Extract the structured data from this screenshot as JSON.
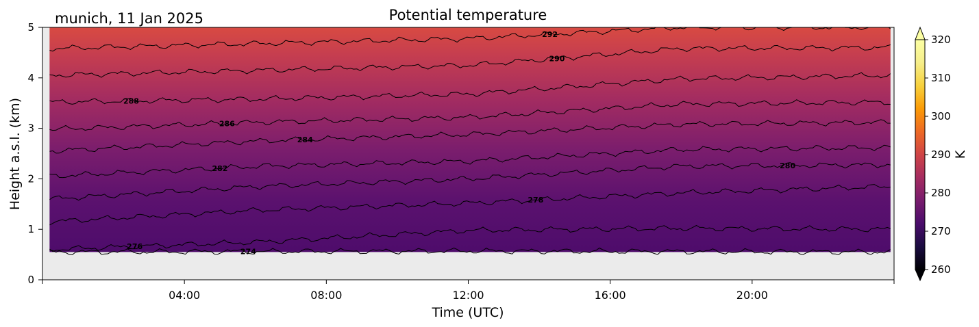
{
  "chart_data": {
    "type": "heatmap",
    "title": "Potential temperature",
    "subtitle": "munich, 11 Jan 2025",
    "xlabel": "Time (UTC)",
    "ylabel": "Height a.s.l. (km)",
    "xlim_hours": [
      0,
      24
    ],
    "ylim_km": [
      0,
      5
    ],
    "x_ticks": [
      {
        "hour": 4,
        "label": "04:00"
      },
      {
        "hour": 8,
        "label": "08:00"
      },
      {
        "hour": 12,
        "label": "12:00"
      },
      {
        "hour": 16,
        "label": "16:00"
      },
      {
        "hour": 20,
        "label": "20:00"
      }
    ],
    "y_ticks": [
      {
        "value": 0,
        "label": "0"
      },
      {
        "value": 1,
        "label": "1"
      },
      {
        "value": 2,
        "label": "2"
      },
      {
        "value": 3,
        "label": "3"
      },
      {
        "value": 4,
        "label": "4"
      },
      {
        "value": 5,
        "label": "5"
      }
    ],
    "data_extent": {
      "hours": [
        0.2,
        23.9
      ],
      "height_km": [
        0.55,
        5
      ]
    },
    "no_data_color": "#ebebeb",
    "colorbar": {
      "label": "K",
      "range": [
        260,
        320
      ],
      "colormap": "inferno",
      "extend": "both",
      "ticks": [
        {
          "value": 260,
          "label": "260"
        },
        {
          "value": 270,
          "label": "270"
        },
        {
          "value": 280,
          "label": "280"
        },
        {
          "value": 290,
          "label": "290"
        },
        {
          "value": 300,
          "label": "300"
        },
        {
          "value": 310,
          "label": "310"
        },
        {
          "value": 320,
          "label": "320"
        }
      ]
    },
    "contours": [
      {
        "level": 274,
        "heights_km": [
          0.55,
          0.56,
          0.57,
          0.56,
          0.55
        ],
        "label_hour": 5.8
      },
      {
        "level": 276,
        "heights_km": [
          0.6,
          0.75,
          0.98,
          1.02,
          1.0
        ],
        "label_hour": 2.6
      },
      {
        "level": 278,
        "heights_km": [
          1.15,
          1.38,
          1.52,
          1.72,
          1.85
        ],
        "label_hour": 13.9
      },
      {
        "level": 280,
        "heights_km": [
          1.6,
          1.85,
          2.0,
          2.25,
          2.28
        ],
        "label_hour": 21.0
      },
      {
        "level": 282,
        "heights_km": [
          2.05,
          2.25,
          2.35,
          2.58,
          2.62
        ],
        "label_hour": 5.0
      },
      {
        "level": 284,
        "heights_km": [
          2.55,
          2.75,
          2.88,
          3.08,
          3.12
        ],
        "label_hour": 7.4
      },
      {
        "level": 286,
        "heights_km": [
          2.98,
          3.12,
          3.22,
          3.48,
          3.52
        ],
        "label_hour": 5.2
      },
      {
        "level": 288,
        "heights_km": [
          3.52,
          3.58,
          3.68,
          3.98,
          4.05
        ],
        "label_hour": 2.5
      },
      {
        "level": 290,
        "heights_km": [
          4.05,
          4.15,
          4.25,
          4.58,
          4.6
        ],
        "label_hour": 14.5
      },
      {
        "level": 292,
        "heights_km": [
          4.58,
          4.68,
          4.78,
          5.0,
          5.0
        ],
        "label_hour": 14.3
      }
    ],
    "legend": "none",
    "grid": false
  }
}
